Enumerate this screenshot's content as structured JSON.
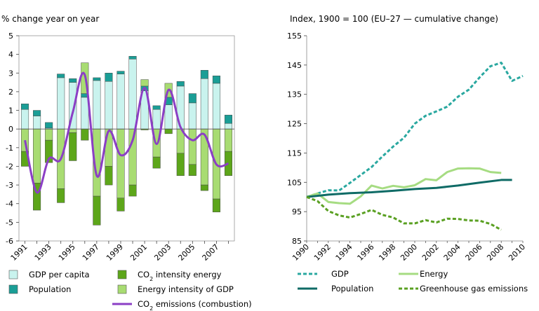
{
  "chart_data": [
    {
      "type": "bar",
      "ylabel": "% change year on year",
      "ylim": [
        -6,
        5
      ],
      "yticks": [
        5,
        4,
        3,
        2,
        1,
        0,
        -1,
        -2,
        -3,
        -4,
        -5,
        -6
      ],
      "x": [
        1991,
        1992,
        1993,
        1994,
        1995,
        1996,
        1997,
        1998,
        1999,
        2000,
        2001,
        2002,
        2003,
        2004,
        2005,
        2006,
        2007,
        2008
      ],
      "xtick_labels": [
        "1991",
        "1993",
        "1995",
        "1997",
        "1999",
        "2001",
        "2003",
        "2005",
        "2007"
      ],
      "stacked": true,
      "series": [
        {
          "name": "GDP per capita",
          "color": "#c9f3ee",
          "values": [
            1.05,
            0.7,
            0.05,
            2.75,
            2.5,
            1.7,
            2.6,
            2.55,
            2.95,
            3.75,
            2.05,
            1.05,
            1.3,
            2.3,
            1.4,
            2.7,
            2.45,
            0.3
          ]
        },
        {
          "name": "Population",
          "color": "#1a9e96",
          "values": [
            0.3,
            0.3,
            0.3,
            0.2,
            0.2,
            0.2,
            0.15,
            0.45,
            0.15,
            0.15,
            0.25,
            0.2,
            0.4,
            0.25,
            0.5,
            0.45,
            0.4,
            0.45
          ]
        },
        {
          "name": "Energy intensity of GDP",
          "color": "#a8dc72",
          "values": [
            -1.2,
            -2.9,
            -0.6,
            -3.2,
            -0.2,
            1.65,
            -3.6,
            -2.0,
            -3.7,
            -3.0,
            0.35,
            -1.5,
            0.75,
            -1.3,
            -1.9,
            -3.0,
            -3.75,
            -1.2
          ]
        },
        {
          "name": "CO2 intensity energy",
          "color": "#5da61a",
          "values": [
            -0.8,
            -1.45,
            -1.2,
            -0.75,
            -1.5,
            -0.6,
            -1.55,
            -1.0,
            -0.7,
            -0.6,
            -0.05,
            -0.6,
            -0.25,
            -1.2,
            -0.6,
            -0.3,
            -0.7,
            -1.3
          ]
        }
      ],
      "line_series": {
        "name": "CO2 emissions (combustion)",
        "color": "#8b3fc5",
        "values": [
          -0.6,
          -3.4,
          -1.6,
          -1.6,
          0.9,
          2.9,
          -2.5,
          -0.1,
          -1.4,
          -0.6,
          2.2,
          -0.8,
          2.1,
          0.1,
          -0.6,
          -0.3,
          -1.9,
          -1.85
        ]
      }
    },
    {
      "type": "line",
      "ylabel": "Index, 1900 = 100 (EU–27 — cumulative change)",
      "ylim": [
        85,
        155
      ],
      "yticks": [
        155,
        145,
        135,
        125,
        115,
        105,
        95,
        85
      ],
      "xlim": [
        1990,
        2010
      ],
      "xtick_labels": [
        "1990",
        "1992",
        "1994",
        "1996",
        "1998",
        "2000",
        "2002",
        "2004",
        "2006",
        "2008",
        "2010"
      ],
      "series": [
        {
          "name": "GDP",
          "color": "#2aa8a0",
          "dash": true,
          "x": [
            1990,
            1991,
            1992,
            1993,
            1994,
            1995,
            1996,
            1997,
            1998,
            1999,
            2000,
            2001,
            2002,
            2003,
            2004,
            2005,
            2006,
            2007,
            2008,
            2009,
            2010
          ],
          "y": [
            100,
            101.2,
            102.3,
            102.2,
            104.8,
            107.5,
            110.2,
            113.8,
            117.2,
            120.2,
            125,
            127.7,
            129.2,
            130.8,
            134.2,
            136.6,
            140.8,
            144.6,
            145.8,
            139.6,
            141.3
          ]
        },
        {
          "name": "Energy",
          "color": "#a6dc82",
          "dash": false,
          "x": [
            1990,
            1991,
            1992,
            1993,
            1994,
            1995,
            1996,
            1997,
            1998,
            1999,
            2000,
            2001,
            2002,
            2003,
            2004,
            2005,
            2006,
            2007,
            2008
          ],
          "y": [
            100,
            101.2,
            98.3,
            97.9,
            97.7,
            100.2,
            103.9,
            102.9,
            103.8,
            103.3,
            104.0,
            106.1,
            105.7,
            108.5,
            109.7,
            109.8,
            109.7,
            108.5,
            108.2
          ]
        },
        {
          "name": "Population",
          "color": "#0f6b66",
          "dash": false,
          "x": [
            1990,
            1992,
            1994,
            1996,
            1998,
            2000,
            2002,
            2004,
            2006,
            2008,
            2009
          ],
          "y": [
            100,
            100.8,
            101.3,
            101.6,
            102.1,
            102.7,
            103.1,
            103.9,
            104.9,
            105.8,
            105.8
          ]
        },
        {
          "name": "Greenhouse gas emissions",
          "color": "#5aa022",
          "dash": true,
          "x": [
            1990,
            1991,
            1992,
            1993,
            1994,
            1995,
            1996,
            1997,
            1998,
            1999,
            2000,
            2001,
            2002,
            2003,
            2004,
            2005,
            2006,
            2007,
            2008
          ],
          "y": [
            100,
            98.6,
            95.2,
            93.7,
            93.0,
            94.2,
            95.6,
            93.9,
            93.0,
            91.0,
            91.0,
            92.1,
            91.3,
            92.6,
            92.5,
            92.0,
            91.9,
            90.8,
            88.8
          ]
        }
      ]
    }
  ]
}
